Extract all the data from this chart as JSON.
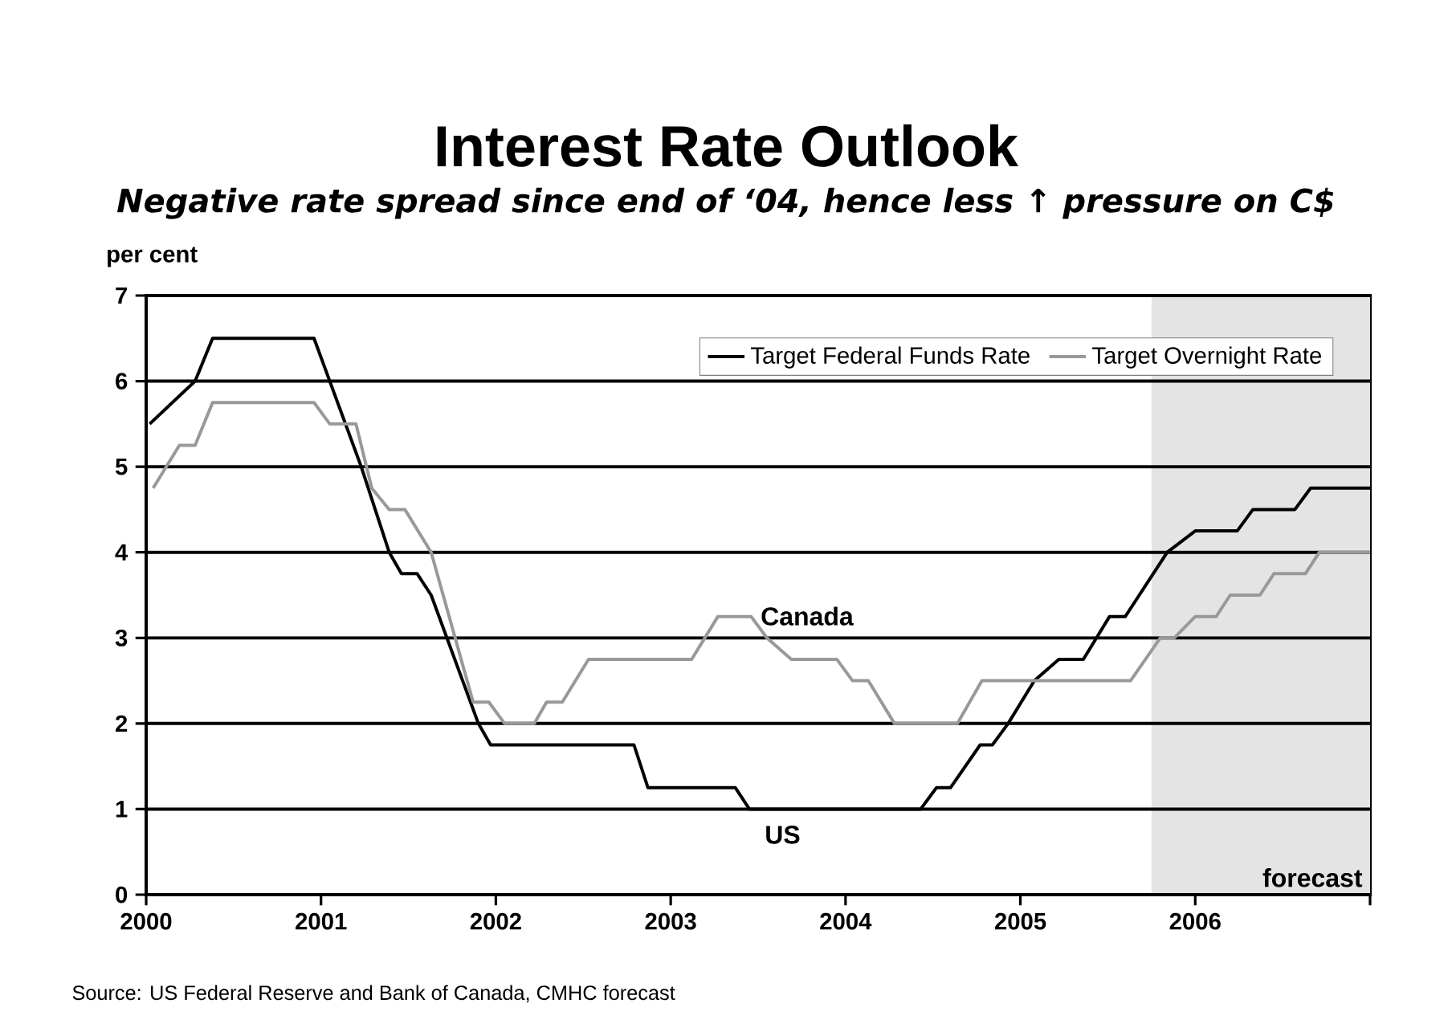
{
  "chart_data": {
    "type": "line",
    "title": "Interest Rate Outlook",
    "subtitle": "Negative rate spread since end of ‘04, hence less ↑ pressure on C$",
    "ylabel": "per cent",
    "xlim": [
      2000,
      2007
    ],
    "xticks": [
      2000,
      2001,
      2002,
      2003,
      2004,
      2005,
      2006,
      {
        "value": 2007,
        "label": null
      }
    ],
    "ylim": [
      0,
      7
    ],
    "yticks": [
      0,
      1,
      2,
      3,
      4,
      5,
      6,
      7
    ],
    "grid": "y",
    "legend": "top right",
    "marker": "none",
    "line_style": "solid",
    "bands": [
      {
        "axis": "x",
        "from": 2005.75,
        "to": 2007,
        "label": "forecast",
        "color": "#e4e4e4"
      }
    ],
    "annotations": [
      "Canada",
      "US",
      "Source: US Federal Reserve and Bank of Canada, CMHC forecast"
    ],
    "series": [
      {
        "name": "Target Federal Funds Rate",
        "color": "#000000",
        "x": [
          2000.02,
          2000.28,
          2000.38,
          2000.96,
          2001.05,
          2001.23,
          2001.39,
          2001.46,
          2001.55,
          2001.63,
          2001.9,
          2001.97,
          2002.79,
          2002.87,
          2003.37,
          2003.45,
          2004.43,
          2004.52,
          2004.6,
          2004.77,
          2004.84,
          2004.93,
          2005.08,
          2005.22,
          2005.36,
          2005.51,
          2005.6,
          2005.84,
          2006.0,
          2006.24,
          2006.33,
          2006.57,
          2006.66,
          2007.0
        ],
        "values": [
          5.5,
          6.0,
          6.5,
          6.5,
          6.0,
          5.0,
          4.0,
          3.75,
          3.75,
          3.5,
          2.0,
          1.75,
          1.75,
          1.25,
          1.25,
          1.0,
          1.0,
          1.25,
          1.25,
          1.75,
          1.75,
          2.0,
          2.5,
          2.75,
          2.75,
          3.25,
          3.25,
          4.0,
          4.25,
          4.25,
          4.5,
          4.5,
          4.75,
          4.75
        ]
      },
      {
        "name": "Target Overnight Rate",
        "color": "#999999",
        "x": [
          2000.04,
          2000.19,
          2000.28,
          2000.38,
          2000.96,
          2001.05,
          2001.2,
          2001.29,
          2001.39,
          2001.48,
          2001.63,
          2001.87,
          2001.96,
          2002.05,
          2002.22,
          2002.29,
          2002.38,
          2002.53,
          2003.12,
          2003.27,
          2003.46,
          2003.55,
          2003.69,
          2003.95,
          2004.04,
          2004.13,
          2004.28,
          2004.64,
          2004.78,
          2005.63,
          2005.8,
          2005.88,
          2006.0,
          2006.12,
          2006.2,
          2006.37,
          2006.45,
          2006.63,
          2006.71,
          2007.0
        ],
        "values": [
          4.75,
          5.25,
          5.25,
          5.75,
          5.75,
          5.5,
          5.5,
          4.75,
          4.5,
          4.5,
          4.0,
          2.25,
          2.25,
          2.0,
          2.0,
          2.25,
          2.25,
          2.75,
          2.75,
          3.25,
          3.25,
          3.0,
          2.75,
          2.75,
          2.5,
          2.5,
          2.0,
          2.0,
          2.5,
          2.5,
          3.0,
          3.0,
          3.25,
          3.25,
          3.5,
          3.5,
          3.75,
          3.75,
          4.0,
          4.0
        ]
      }
    ]
  }
}
